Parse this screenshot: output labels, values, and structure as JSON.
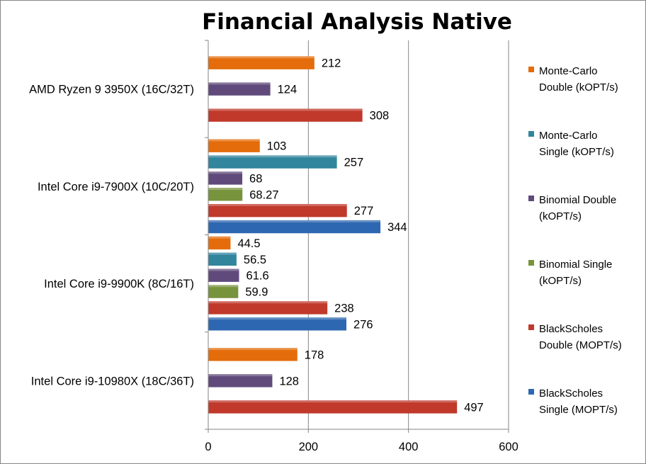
{
  "chart_data": {
    "type": "bar",
    "orientation": "horizontal",
    "title": "Financial Analysis Native",
    "xlabel": "",
    "ylabel": "",
    "xlim": [
      0,
      600
    ],
    "x_ticks": [
      0,
      200,
      400,
      600
    ],
    "grid": "vertical",
    "legend_position": "right",
    "categories": [
      "AMD Ryzen 9 3950X (16C/32T)",
      "Intel Core i9-7900X (10C/20T)",
      "Intel Core i9-9900K (8C/16T)",
      "Intel Core i9-10980X (18C/36T)"
    ],
    "series": [
      {
        "name": "Monte-Carlo Double (kOPT/s)",
        "legend_lines": [
          "Monte-Carlo",
          "Double (kOPT/s)"
        ],
        "color": "#E46C0A",
        "values": [
          212,
          103,
          44.5,
          178
        ],
        "labels": [
          "212",
          "103",
          "44.5",
          "178"
        ]
      },
      {
        "name": "Monte-Carlo Single (kOPT/s)",
        "legend_lines": [
          "Monte-Carlo",
          "Single (kOPT/s)"
        ],
        "color": "#31859C",
        "values": [
          null,
          257,
          56.5,
          null
        ],
        "labels": [
          null,
          "257",
          "56.5",
          null
        ]
      },
      {
        "name": "Binomial Double (kOPT/s)",
        "legend_lines": [
          "Binomial Double",
          "(kOPT/s)"
        ],
        "color": "#604A7B",
        "values": [
          124,
          68,
          61.6,
          128
        ],
        "labels": [
          "124",
          "68",
          "61.6",
          "128"
        ]
      },
      {
        "name": "Binomial Single (kOPT/s)",
        "legend_lines": [
          "Binomial Single",
          "(kOPT/s)"
        ],
        "color": "#77933C",
        "values": [
          null,
          68.27,
          59.9,
          null
        ],
        "labels": [
          null,
          "68.27",
          "59.9",
          null
        ]
      },
      {
        "name": "BlackScholes Double (MOPT/s)",
        "legend_lines": [
          "BlackScholes",
          "Double (MOPT/s)"
        ],
        "color": "#C0392B",
        "values": [
          308,
          277,
          238,
          497
        ],
        "labels": [
          "308",
          "277",
          "238",
          "497"
        ]
      },
      {
        "name": "BlackScholes Single (MOPT/s)",
        "legend_lines": [
          "BlackScholes",
          "Single (MOPT/s)"
        ],
        "color": "#2E67B1",
        "values": [
          null,
          344,
          276,
          null
        ],
        "labels": [
          null,
          "344",
          "276",
          null
        ]
      }
    ]
  }
}
